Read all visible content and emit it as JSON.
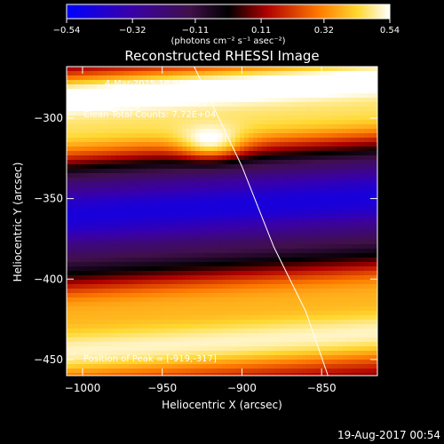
{
  "chart_data": {
    "type": "heatmap",
    "title": "Reconstructed RHESSI Image",
    "xlabel": "Heliocentric X (arcsec)",
    "ylabel": "Heliocentric Y (arcsec)",
    "xlim": [
      -1010,
      -815
    ],
    "ylim": [
      -460,
      -268
    ],
    "x_ticks": [
      -1000,
      -950,
      -900,
      -850
    ],
    "y_ticks": [
      -300,
      -350,
      -400,
      -450
    ],
    "colorbar": {
      "range": [
        -0.54,
        0.54
      ],
      "tick_values": [
        -0.54,
        -0.32,
        -0.11,
        0.11,
        0.32,
        0.54
      ],
      "tick_labels": [
        "-0.54",
        "-0.32",
        "-0.11",
        "0.11",
        "0.32",
        "0.54"
      ],
      "unit_label": "(photons cm⁻² s⁻¹ asec⁻²)"
    },
    "bands": [
      {
        "center": -280,
        "value": 0.54,
        "width": 14
      },
      {
        "center": -305,
        "value": 0.42,
        "width": 18
      },
      {
        "center": -330,
        "value": -0.05,
        "width": 12
      },
      {
        "center": -355,
        "value": -0.45,
        "width": 22
      },
      {
        "center": -385,
        "value": -0.05,
        "width": 12
      },
      {
        "center": -410,
        "value": 0.3,
        "width": 16
      },
      {
        "center": -440,
        "value": 0.5,
        "width": 20
      }
    ],
    "peak": {
      "x": -919,
      "y": -317
    },
    "limb_line": [
      [
        -930,
        -268
      ],
      [
        -900,
        -330
      ],
      [
        -880,
        -380
      ],
      [
        -860,
        -420
      ],
      [
        -846,
        -460
      ]
    ],
    "annotations": {
      "time_range": "4-Mar-2015 18:04:40.000 to 18:14:40.000",
      "detectors": "Detectors: 3F 5F 6F 7F 8F 9F, Att 0",
      "energy": "Energy Range: 3.0 - 6.0 keV",
      "clean": "Clean      Total Counts: 7.72E+04",
      "peak_label": "Position of Peak = [-919,-317]"
    },
    "timestamp": "19-Aug-2017 00:54"
  }
}
